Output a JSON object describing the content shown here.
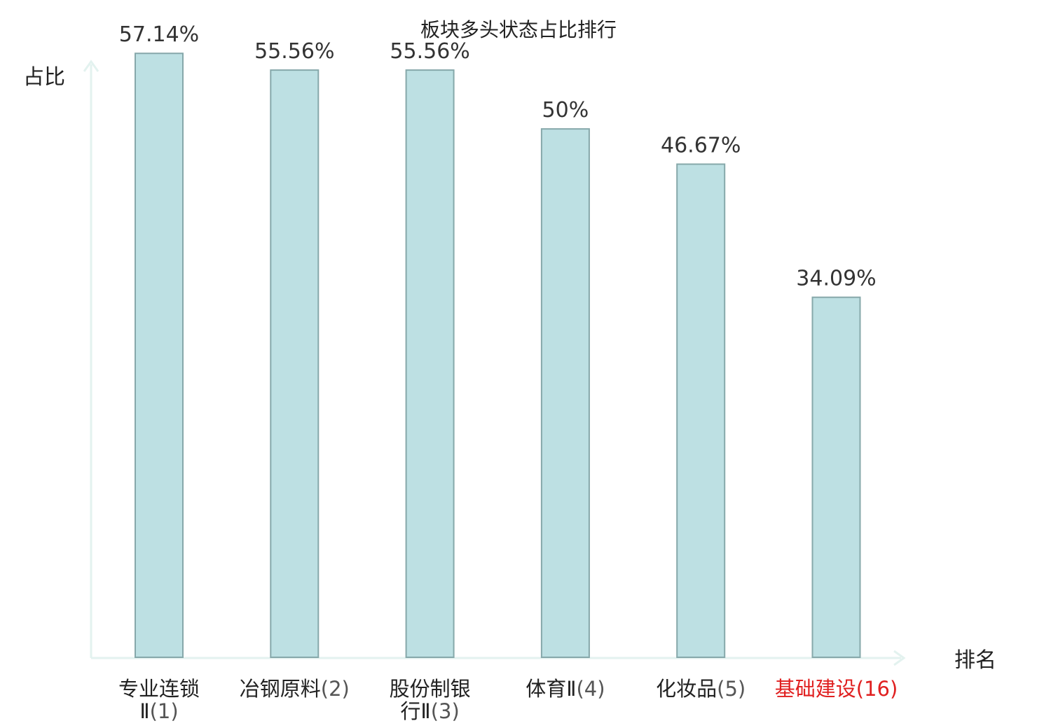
{
  "chart_data": {
    "type": "bar",
    "title": "板块多头状态占比排行",
    "ylabel": "占比",
    "xlabel": "排名",
    "ylim": [
      0,
      60
    ],
    "grid": false,
    "legend": "none",
    "categories": [
      {
        "name": "专业连锁Ⅱ",
        "rank": "(1)",
        "lines": [
          [
            "专业连锁",
            ""
          ],
          [
            "Ⅱ",
            "(1)"
          ]
        ],
        "highlight": false
      },
      {
        "name": "冶钢原料",
        "rank": "(2)",
        "lines": [
          [
            "冶钢原料",
            "(2)"
          ]
        ],
        "highlight": false
      },
      {
        "name": "股份制银行Ⅱ",
        "rank": "(3)",
        "lines": [
          [
            "股份制银",
            ""
          ],
          [
            "行Ⅱ",
            "(3)"
          ]
        ],
        "highlight": false
      },
      {
        "name": "体育Ⅱ",
        "rank": "(4)",
        "lines": [
          [
            "体育Ⅱ",
            "(4)"
          ]
        ],
        "highlight": false
      },
      {
        "name": "化妆品",
        "rank": "(5)",
        "lines": [
          [
            "化妆品",
            "(5)"
          ]
        ],
        "highlight": false
      },
      {
        "name": "基础建设",
        "rank": "(16)",
        "lines": [
          [
            "基础建设",
            "(16)"
          ]
        ],
        "highlight": true
      }
    ],
    "values": [
      57.14,
      55.56,
      55.56,
      50,
      46.67,
      34.09
    ],
    "value_labels": [
      "57.14%",
      "55.56%",
      "55.56%",
      "50%",
      "46.67%",
      "34.09%"
    ]
  },
  "colors": {
    "bar_fill": "#bde0e3",
    "bar_stroke": "#86a8aa",
    "axis": "#e3f2ef",
    "label_text": "#222222",
    "rank_text": "#555555",
    "highlight": "#e02020"
  }
}
